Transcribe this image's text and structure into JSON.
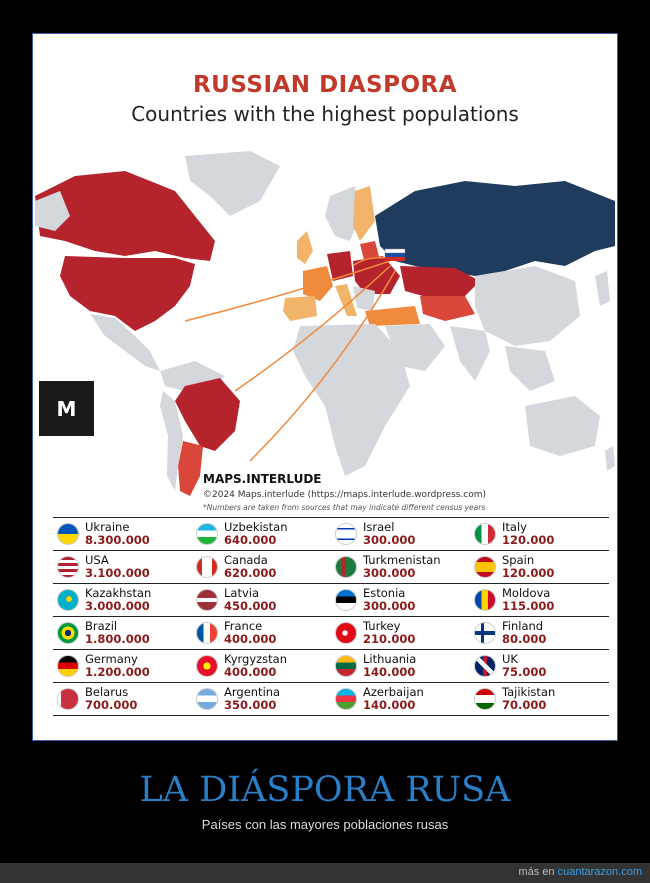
{
  "map": {
    "title": "RUSSIAN DIASPORA",
    "subtitle": "Countries with the highest populations",
    "credit_brand": "MAPS.INTERLUDE",
    "credit_copy": "©2024 Maps.interlude (https://maps.interlude.wordpress.com)",
    "credit_note": "*Numbers are taken from sources that may indicate different census years",
    "logo_letter": "M",
    "colors": {
      "russia": "#1f3b5e",
      "high": "#b5232c",
      "mid": "#d9473a",
      "low": "#f08a3c",
      "lowest": "#f2b46a",
      "land": "#d4d7db",
      "arrow": "#f08a3c"
    }
  },
  "countries": [
    [
      {
        "name": "Ukraine",
        "value": "8.300.000",
        "flag": "ukraine"
      },
      {
        "name": "Uzbekistan",
        "value": "640.000",
        "flag": "uzbekistan"
      },
      {
        "name": "Israel",
        "value": "300.000",
        "flag": "israel"
      },
      {
        "name": "Italy",
        "value": "120.000",
        "flag": "italy"
      }
    ],
    [
      {
        "name": "USA",
        "value": "3.100.000",
        "flag": "usa"
      },
      {
        "name": "Canada",
        "value": "620.000",
        "flag": "canada"
      },
      {
        "name": "Turkmenistan",
        "value": "300.000",
        "flag": "turkmenistan"
      },
      {
        "name": "Spain",
        "value": "120.000",
        "flag": "spain"
      }
    ],
    [
      {
        "name": "Kazakhstan",
        "value": "3.000.000",
        "flag": "kazakhstan"
      },
      {
        "name": "Latvia",
        "value": "450.000",
        "flag": "latvia"
      },
      {
        "name": "Estonia",
        "value": "300.000",
        "flag": "estonia"
      },
      {
        "name": "Moldova",
        "value": "115.000",
        "flag": "moldova"
      }
    ],
    [
      {
        "name": "Brazil",
        "value": "1.800.000",
        "flag": "brazil"
      },
      {
        "name": "France",
        "value": "400.000",
        "flag": "france"
      },
      {
        "name": "Turkey",
        "value": "210.000",
        "flag": "turkey"
      },
      {
        "name": "Finland",
        "value": "80.000",
        "flag": "finland"
      }
    ],
    [
      {
        "name": "Germany",
        "value": "1.200.000",
        "flag": "germany"
      },
      {
        "name": "Kyrgyzstan",
        "value": "400.000",
        "flag": "kyrgyzstan"
      },
      {
        "name": "Lithuania",
        "value": "140.000",
        "flag": "lithuania"
      },
      {
        "name": "UK",
        "value": "75.000",
        "flag": "uk"
      }
    ],
    [
      {
        "name": "Belarus",
        "value": "700.000",
        "flag": "belarus"
      },
      {
        "name": "Argentina",
        "value": "350.000",
        "flag": "argentina"
      },
      {
        "name": "Azerbaijan",
        "value": "140.000",
        "flag": "azerbaijan"
      },
      {
        "name": "Tajikistan",
        "value": "70.000",
        "flag": "tajikistan"
      }
    ]
  ],
  "caption": {
    "title": "LA DIÁSPORA RUSA",
    "subtitle": "Países con las mayores poblaciones rusas"
  },
  "footer": {
    "prefix": "más en ",
    "site": "cuantarazon.com"
  }
}
